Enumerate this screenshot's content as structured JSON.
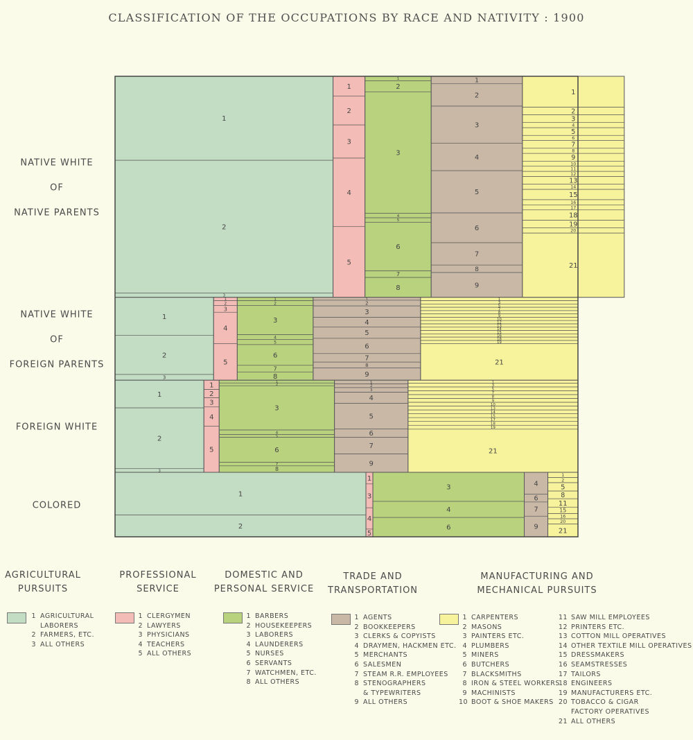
{
  "title": "CLASSIFICATION OF THE OCCUPATIONS BY RACE AND NATIVITY : 1900",
  "colors": {
    "agri": "#c3dcc4",
    "prof": "#f4bcb6",
    "dom": "#b8d27e",
    "trade": "#c9b8a6",
    "manu": "#f7f39c",
    "line": "#5a5a5a"
  },
  "row_labels": [
    [
      "NATIVE WHITE",
      "OF",
      "NATIVE PARENTS"
    ],
    [
      "NATIVE WHITE",
      "OF",
      "FOREIGN PARENTS"
    ],
    [
      "FOREIGN WHITE"
    ],
    [
      "COLORED"
    ]
  ],
  "chart_data": {
    "type": "mosaic",
    "title": "CLASSIFICATION OF THE OCCUPATIONS BY RACE AND NATIVITY : 1900",
    "rows": [
      {
        "label": "NATIVE WHITE OF NATIVE PARENTS",
        "share": 0.48,
        "groups": [
          {
            "cat": "agri",
            "share": 0.471,
            "items": [
              {
                "n": "1",
                "v": 0.38
              },
              {
                "n": "2",
                "v": 0.6
              },
              {
                "n": "3",
                "v": 0.02
              }
            ]
          },
          {
            "cat": "prof",
            "share": 0.069,
            "items": [
              {
                "n": "1",
                "v": 0.09
              },
              {
                "n": "2",
                "v": 0.13
              },
              {
                "n": "3",
                "v": 0.15
              },
              {
                "n": "4",
                "v": 0.31
              },
              {
                "n": "5",
                "v": 0.32
              }
            ]
          },
          {
            "cat": "dom",
            "share": 0.143,
            "items": [
              {
                "n": "1",
                "v": 0.02
              },
              {
                "n": "2",
                "v": 0.05
              },
              {
                "n": "3",
                "v": 0.55
              },
              {
                "n": "4",
                "v": 0.02
              },
              {
                "n": "5",
                "v": 0.02
              },
              {
                "n": "6",
                "v": 0.22
              },
              {
                "n": "7",
                "v": 0.03
              },
              {
                "n": "8",
                "v": 0.09
              }
            ]
          },
          {
            "cat": "trade",
            "share": 0.197,
            "items": [
              {
                "n": "1",
                "v": 0.03
              },
              {
                "n": "2",
                "v": 0.09
              },
              {
                "n": "3",
                "v": 0.15
              },
              {
                "n": "4",
                "v": 0.11
              },
              {
                "n": "5",
                "v": 0.17
              },
              {
                "n": "6",
                "v": 0.12
              },
              {
                "n": "7",
                "v": 0.09
              },
              {
                "n": "8",
                "v": 0.03
              },
              {
                "n": "9",
                "v": 0.1
              }
            ]
          },
          {
            "cat": "manu",
            "share": 0.22,
            "items": [
              {
                "n": "1",
                "v": 0.12
              },
              {
                "n": "2",
                "v": 0.03
              },
              {
                "n": "3",
                "v": 0.03
              },
              {
                "n": "4",
                "v": 0.02
              },
              {
                "n": "5",
                "v": 0.03
              },
              {
                "n": "6",
                "v": 0.02
              },
              {
                "n": "7",
                "v": 0.03
              },
              {
                "n": "8",
                "v": 0.02
              },
              {
                "n": "9",
                "v": 0.03
              },
              {
                "n": "10",
                "v": 0.02
              },
              {
                "n": "11",
                "v": 0.02
              },
              {
                "n": "12",
                "v": 0.02
              },
              {
                "n": "13",
                "v": 0.03
              },
              {
                "n": "14",
                "v": 0.02
              },
              {
                "n": "15",
                "v": 0.04
              },
              {
                "n": "16",
                "v": 0.02
              },
              {
                "n": "17",
                "v": 0.02
              },
              {
                "n": "18",
                "v": 0.04
              },
              {
                "n": "19",
                "v": 0.03
              },
              {
                "n": "20",
                "v": 0.02
              },
              {
                "n": "21",
                "v": 0.25
              }
            ]
          }
        ]
      },
      {
        "label": "NATIVE WHITE OF FOREIGN PARENTS",
        "share": 0.18,
        "groups": [
          {
            "cat": "agri",
            "share": 0.213,
            "items": [
              {
                "n": "1",
                "v": 0.46
              },
              {
                "n": "2",
                "v": 0.47
              },
              {
                "n": "3",
                "v": 0.07
              }
            ]
          },
          {
            "cat": "prof",
            "share": 0.051,
            "items": [
              {
                "n": "1",
                "v": 0.04
              },
              {
                "n": "2",
                "v": 0.06
              },
              {
                "n": "3",
                "v": 0.08
              },
              {
                "n": "4",
                "v": 0.38
              },
              {
                "n": "5",
                "v": 0.44
              }
            ]
          },
          {
            "cat": "dom",
            "share": 0.164,
            "items": [
              {
                "n": "1",
                "v": 0.04
              },
              {
                "n": "2",
                "v": 0.06
              },
              {
                "n": "3",
                "v": 0.35
              },
              {
                "n": "4",
                "v": 0.06
              },
              {
                "n": "5",
                "v": 0.06
              },
              {
                "n": "6",
                "v": 0.25
              },
              {
                "n": "7",
                "v": 0.08
              },
              {
                "n": "8",
                "v": 0.1
              }
            ]
          },
          {
            "cat": "trade",
            "share": 0.232,
            "items": [
              {
                "n": "1",
                "v": 0.03
              },
              {
                "n": "2",
                "v": 0.06
              },
              {
                "n": "3",
                "v": 0.12
              },
              {
                "n": "4",
                "v": 0.1
              },
              {
                "n": "5",
                "v": 0.12
              },
              {
                "n": "6",
                "v": 0.16
              },
              {
                "n": "7",
                "v": 0.09
              },
              {
                "n": "8",
                "v": 0.06
              },
              {
                "n": "9",
                "v": 0.13
              }
            ]
          },
          {
            "cat": "manu",
            "share": 0.34,
            "items": [
              {
                "n": "1",
                "v": 0.04
              },
              {
                "n": "3",
                "v": 0.04
              },
              {
                "n": "5",
                "v": 0.04
              },
              {
                "n": "7",
                "v": 0.04
              },
              {
                "n": "8",
                "v": 0.04
              },
              {
                "n": "9",
                "v": 0.04
              },
              {
                "n": "10",
                "v": 0.04
              },
              {
                "n": "12",
                "v": 0.04
              },
              {
                "n": "13",
                "v": 0.04
              },
              {
                "n": "14",
                "v": 0.04
              },
              {
                "n": "15",
                "v": 0.04
              },
              {
                "n": "16",
                "v": 0.04
              },
              {
                "n": "18",
                "v": 0.04
              },
              {
                "n": "19",
                "v": 0.04
              },
              {
                "n": "21",
                "v": 0.44
              }
            ]
          }
        ]
      },
      {
        "label": "FOREIGN WHITE",
        "share": 0.2,
        "groups": [
          {
            "cat": "agri",
            "share": 0.192,
            "items": [
              {
                "n": "1",
                "v": 0.3
              },
              {
                "n": "2",
                "v": 0.66
              },
              {
                "n": "3",
                "v": 0.04
              }
            ]
          },
          {
            "cat": "prof",
            "share": 0.033,
            "items": [
              {
                "n": "1",
                "v": 0.1
              },
              {
                "n": "2",
                "v": 0.09
              },
              {
                "n": "3",
                "v": 0.1
              },
              {
                "n": "4",
                "v": 0.21
              },
              {
                "n": "5",
                "v": 0.5
              }
            ]
          },
          {
            "cat": "dom",
            "share": 0.249,
            "items": [
              {
                "n": "1",
                "v": 0.03
              },
              {
                "n": "2",
                "v": 0.03
              },
              {
                "n": "3",
                "v": 0.48
              },
              {
                "n": "4",
                "v": 0.05
              },
              {
                "n": "5",
                "v": 0.03
              },
              {
                "n": "6",
                "v": 0.27
              },
              {
                "n": "7",
                "v": 0.04
              },
              {
                "n": "8",
                "v": 0.07
              }
            ]
          },
          {
            "cat": "trade",
            "share": 0.159,
            "items": [
              {
                "n": "1",
                "v": 0.04
              },
              {
                "n": "2",
                "v": 0.04
              },
              {
                "n": "3",
                "v": 0.05
              },
              {
                "n": "4",
                "v": 0.12
              },
              {
                "n": "5",
                "v": 0.28
              },
              {
                "n": "6",
                "v": 0.09
              },
              {
                "n": "7",
                "v": 0.18
              },
              {
                "n": "9",
                "v": 0.2
              }
            ]
          },
          {
            "cat": "manu",
            "share": 0.367,
            "items": [
              {
                "n": "1",
                "v": 0.03
              },
              {
                "n": "3",
                "v": 0.04
              },
              {
                "n": "5",
                "v": 0.04
              },
              {
                "n": "7",
                "v": 0.04
              },
              {
                "n": "8",
                "v": 0.04
              },
              {
                "n": "9",
                "v": 0.04
              },
              {
                "n": "10",
                "v": 0.04
              },
              {
                "n": "13",
                "v": 0.04
              },
              {
                "n": "14",
                "v": 0.04
              },
              {
                "n": "15",
                "v": 0.04
              },
              {
                "n": "17",
                "v": 0.04
              },
              {
                "n": "18",
                "v": 0.04
              },
              {
                "n": "19",
                "v": 0.04
              },
              {
                "n": "21",
                "v": 0.45
              }
            ]
          }
        ]
      },
      {
        "label": "COLORED",
        "share": 0.14,
        "groups": [
          {
            "cat": "agri",
            "share": 0.542,
            "items": [
              {
                "n": "1",
                "v": 0.66
              },
              {
                "n": "2",
                "v": 0.34
              }
            ]
          },
          {
            "cat": "prof",
            "share": 0.015,
            "items": [
              {
                "n": "1",
                "v": 0.18
              },
              {
                "n": "3",
                "v": 0.37
              },
              {
                "n": "4",
                "v": 0.33
              },
              {
                "n": "5",
                "v": 0.12
              }
            ]
          },
          {
            "cat": "dom",
            "share": 0.327,
            "items": [
              {
                "n": "3",
                "v": 0.45
              },
              {
                "n": "4",
                "v": 0.25
              },
              {
                "n": "6",
                "v": 0.3
              }
            ]
          },
          {
            "cat": "trade",
            "share": 0.051,
            "items": [
              {
                "n": "4",
                "v": 0.34
              },
              {
                "n": "6",
                "v": 0.12
              },
              {
                "n": "7",
                "v": 0.22
              },
              {
                "n": "9",
                "v": 0.32
              }
            ]
          },
          {
            "cat": "manu",
            "share": 0.065,
            "items": [
              {
                "n": "1",
                "v": 0.08
              },
              {
                "n": "2",
                "v": 0.08
              },
              {
                "n": "5",
                "v": 0.13
              },
              {
                "n": "8",
                "v": 0.12
              },
              {
                "n": "11",
                "v": 0.13
              },
              {
                "n": "15",
                "v": 0.1
              },
              {
                "n": "16",
                "v": 0.08
              },
              {
                "n": "20",
                "v": 0.08
              },
              {
                "n": "21",
                "v": 0.2
              }
            ]
          }
        ]
      }
    ]
  },
  "legend": [
    {
      "cat": "agri",
      "title": "AGRICULTURAL\nPURSUITS",
      "items": [
        {
          "n": "1",
          "t": "AGRICULTURAL\n    LABORERS"
        },
        {
          "n": "2",
          "t": "FARMERS, ETC."
        },
        {
          "n": "3",
          "t": "ALL OTHERS"
        }
      ]
    },
    {
      "cat": "prof",
      "title": "PROFESSIONAL\nSERVICE",
      "items": [
        {
          "n": "1",
          "t": "CLERGYMEN"
        },
        {
          "n": "2",
          "t": "LAWYERS"
        },
        {
          "n": "3",
          "t": "PHYSICIANS"
        },
        {
          "n": "4",
          "t": "TEACHERS"
        },
        {
          "n": "5",
          "t": "ALL OTHERS"
        }
      ]
    },
    {
      "cat": "dom",
      "title": "DOMESTIC AND\nPERSONAL SERVICE",
      "items": [
        {
          "n": "1",
          "t": "BARBERS"
        },
        {
          "n": "2",
          "t": "HOUSEKEEPERS"
        },
        {
          "n": "3",
          "t": "LABORERS"
        },
        {
          "n": "4",
          "t": "LAUNDERERS"
        },
        {
          "n": "5",
          "t": "NURSES"
        },
        {
          "n": "6",
          "t": "SERVANTS"
        },
        {
          "n": "7",
          "t": "WATCHMEN, ETC."
        },
        {
          "n": "8",
          "t": "ALL OTHERS"
        }
      ]
    },
    {
      "cat": "trade",
      "title": "TRADE AND\nTRANSPORTATION",
      "items": [
        {
          "n": "1",
          "t": "AGENTS"
        },
        {
          "n": "2",
          "t": "BOOKKEEPERS"
        },
        {
          "n": "3",
          "t": "CLERKS & COPYISTS"
        },
        {
          "n": "4",
          "t": "DRAYMEN, HACKMEN ETC."
        },
        {
          "n": "5",
          "t": "MERCHANTS"
        },
        {
          "n": "6",
          "t": "SALESMEN"
        },
        {
          "n": "7",
          "t": "STEAM R.R. EMPLOYEES"
        },
        {
          "n": "8",
          "t": "STENOGRAPHERS\n& TYPEWRITERS"
        },
        {
          "n": "9",
          "t": "ALL OTHERS"
        }
      ]
    },
    {
      "cat": "manu",
      "title": "MANUFACTURING AND\nMECHANICAL PURSUITS",
      "items": [
        {
          "n": "1",
          "t": "CARPENTERS"
        },
        {
          "n": "2",
          "t": "MASONS"
        },
        {
          "n": "3",
          "t": "PAINTERS ETC."
        },
        {
          "n": "4",
          "t": "PLUMBERS"
        },
        {
          "n": "5",
          "t": "MINERS"
        },
        {
          "n": "6",
          "t": "BUTCHERS"
        },
        {
          "n": "7",
          "t": "BLACKSMITHS"
        },
        {
          "n": "8",
          "t": "IRON & STEEL WORKERS"
        },
        {
          "n": "9",
          "t": "MACHINISTS"
        },
        {
          "n": "10",
          "t": "BOOT & SHOE MAKERS"
        },
        {
          "n": "11",
          "t": "SAW MILL EMPLOYEES"
        },
        {
          "n": "12",
          "t": "PRINTERS ETC."
        },
        {
          "n": "13",
          "t": "COTTON MILL OPERATIVES"
        },
        {
          "n": "14",
          "t": "OTHER TEXTILE MILL OPERATIVES"
        },
        {
          "n": "15",
          "t": "DRESSMAKERS"
        },
        {
          "n": "16",
          "t": "SEAMSTRESSES"
        },
        {
          "n": "17",
          "t": "TAILORS"
        },
        {
          "n": "18",
          "t": "ENGINEERS"
        },
        {
          "n": "19",
          "t": "MANUFACTURERS ETC."
        },
        {
          "n": "20",
          "t": "TOBACCO & CIGAR\nFACTORY OPERATIVES"
        },
        {
          "n": "21",
          "t": "ALL OTHERS"
        }
      ]
    }
  ]
}
